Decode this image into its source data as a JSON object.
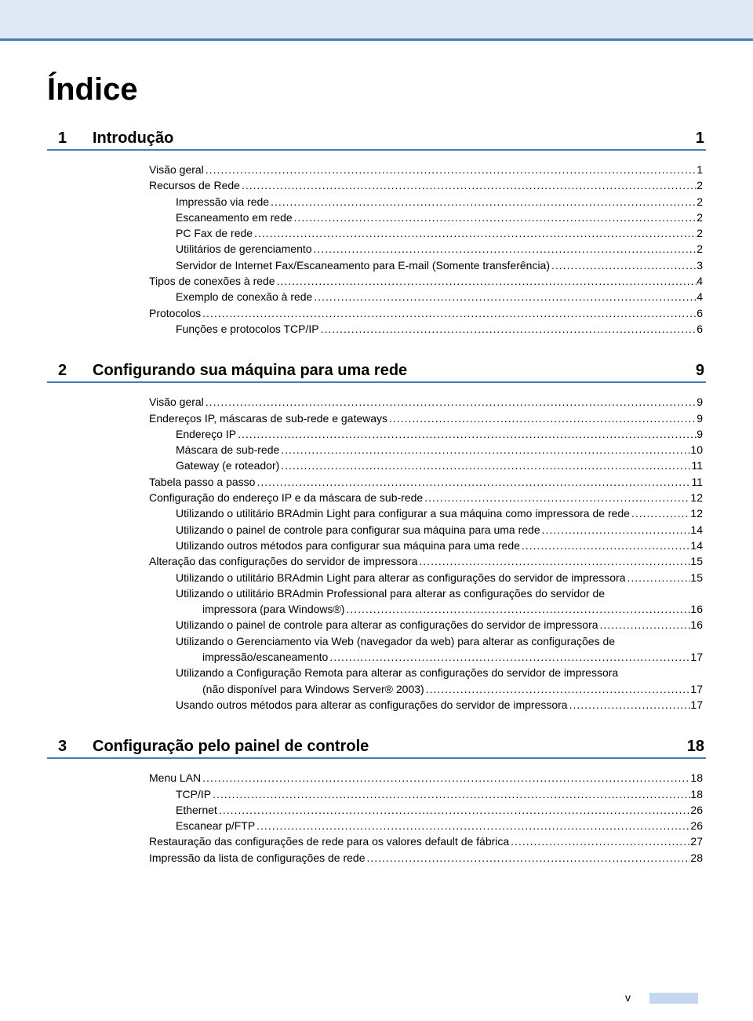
{
  "page_title": "Índice",
  "page_number": "v",
  "colors": {
    "top_bar": "#e0eaf7",
    "rule": "#4a7ab8",
    "footer_bar": "#c5d7ee"
  },
  "chapters": [
    {
      "num": "1",
      "title": "Introdução",
      "page": "1",
      "lines": [
        {
          "text": "Visão geral",
          "page": "1",
          "indent": 0
        },
        {
          "text": "Recursos de Rede",
          "page": "2",
          "indent": 0
        },
        {
          "text": "Impressão via rede",
          "page": "2",
          "indent": 1
        },
        {
          "text": "Escaneamento em rede",
          "page": "2",
          "indent": 1
        },
        {
          "text": "PC Fax de rede",
          "page": "2",
          "indent": 1
        },
        {
          "text": "Utilitários de gerenciamento",
          "page": "2",
          "indent": 1
        },
        {
          "text": "Servidor de Internet Fax/Escaneamento para E-mail (Somente transferência)",
          "page": "3",
          "indent": 1
        },
        {
          "text": "Tipos de conexões à rede",
          "page": "4",
          "indent": 0
        },
        {
          "text": "Exemplo de conexão à rede",
          "page": "4",
          "indent": 1
        },
        {
          "text": "Protocolos",
          "page": "6",
          "indent": 0
        },
        {
          "text": "Funções e protocolos TCP/IP",
          "page": "6",
          "indent": 1
        }
      ]
    },
    {
      "num": "2",
      "title": "Configurando sua máquina para uma rede",
      "page": "9",
      "lines": [
        {
          "text": "Visão geral",
          "page": "9",
          "indent": 0
        },
        {
          "text": "Endereços IP, máscaras de sub-rede e gateways",
          "page": "9",
          "indent": 0
        },
        {
          "text": "Endereço IP",
          "page": "9",
          "indent": 1
        },
        {
          "text": "Máscara de sub-rede",
          "page": "10",
          "indent": 1
        },
        {
          "text": "Gateway (e roteador)",
          "page": "11",
          "indent": 1
        },
        {
          "text": "Tabela passo a passo",
          "page": "11",
          "indent": 0
        },
        {
          "text": "Configuração do endereço IP e da máscara de sub-rede",
          "page": "12",
          "indent": 0
        },
        {
          "text": "Utilizando o utilitário BRAdmin Light para configurar a sua máquina como impressora de rede",
          "page": "12",
          "indent": 1
        },
        {
          "text": "Utilizando o painel de controle para configurar sua máquina para uma rede",
          "page": "14",
          "indent": 1
        },
        {
          "text": "Utilizando outros métodos para configurar sua máquina para uma rede",
          "page": "14",
          "indent": 1
        },
        {
          "text": "Alteração das configurações do servidor de impressora",
          "page": "15",
          "indent": 0
        },
        {
          "text": "Utilizando o utilitário BRAdmin Light para alterar as configurações do servidor de impressora",
          "page": "15",
          "indent": 1
        },
        {
          "text": "Utilizando o utilitário BRAdmin Professional para alterar as configurações do servidor de",
          "cont": "impressora (para Windows®)",
          "page": "16",
          "indent": 1,
          "multiline": true
        },
        {
          "text": "Utilizando o painel de controle para alterar as configurações do servidor de impressora",
          "page": "16",
          "indent": 1
        },
        {
          "text": "Utilizando o Gerenciamento via Web (navegador da web) para alterar as configurações de",
          "cont": "impressão/escaneamento",
          "page": "17",
          "indent": 1,
          "multiline": true
        },
        {
          "text": "Utilizando a Configuração Remota para alterar as configurações do servidor de impressora",
          "cont": "(não disponível para Windows Server® 2003)",
          "page": "17",
          "indent": 1,
          "multiline": true
        },
        {
          "text": "Usando outros métodos para alterar as configurações do servidor de impressora",
          "page": "17",
          "indent": 1
        }
      ]
    },
    {
      "num": "3",
      "title": "Configuração pelo painel de controle",
      "page": "18",
      "lines": [
        {
          "text": "Menu LAN",
          "page": "18",
          "indent": 0
        },
        {
          "text": "TCP/IP",
          "page": "18",
          "indent": 1
        },
        {
          "text": "Ethernet",
          "page": "26",
          "indent": 1
        },
        {
          "text": "Escanear p/FTP",
          "page": "26",
          "indent": 1
        },
        {
          "text": "Restauração das configurações de rede para os valores default de fábrica",
          "page": "27",
          "indent": 0
        },
        {
          "text": "Impressão da lista de configurações de rede",
          "page": "28",
          "indent": 0
        }
      ]
    }
  ]
}
